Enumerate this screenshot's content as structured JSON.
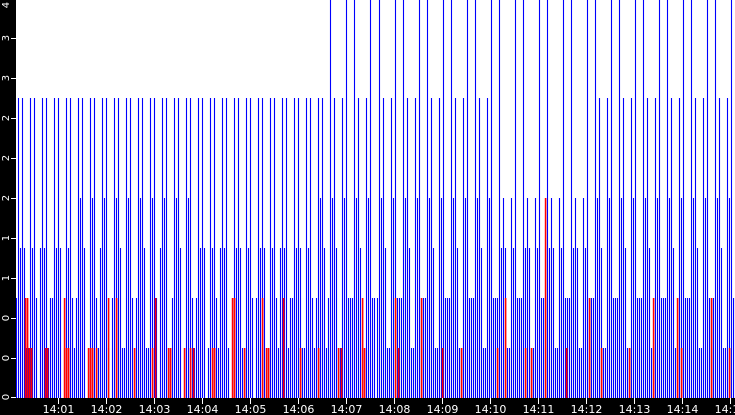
{
  "chart_data": {
    "type": "line",
    "title": "",
    "xlabel": "",
    "ylabel": "",
    "ylim": [
      0,
      4
    ],
    "xlim": [
      "14:00:07",
      "14:15:06"
    ],
    "grid": false,
    "legend": "none",
    "y_ticks": [
      {
        "value": 0,
        "label": "0"
      },
      {
        "value": 0.4,
        "label": "0"
      },
      {
        "value": 0.8,
        "label": "0"
      },
      {
        "value": 1.2,
        "label": "1"
      },
      {
        "value": 1.6,
        "label": "1"
      },
      {
        "value": 2.0,
        "label": "2"
      },
      {
        "value": 2.4,
        "label": "2"
      },
      {
        "value": 2.8,
        "label": "2"
      },
      {
        "value": 3.2,
        "label": "3"
      },
      {
        "value": 3.6,
        "label": "3"
      },
      {
        "value": 4.0,
        "label": "4"
      }
    ],
    "x_ticks": [
      {
        "time": "14:01:00",
        "label": "14:01"
      },
      {
        "time": "14:02:00",
        "label": "14:02"
      },
      {
        "time": "14:03:00",
        "label": "14:03"
      },
      {
        "time": "14:04:00",
        "label": "14:04"
      },
      {
        "time": "14:05:00",
        "label": "14:05"
      },
      {
        "time": "14:06:00",
        "label": "14:06"
      },
      {
        "time": "14:07:00",
        "label": "14:07"
      },
      {
        "time": "14:08:00",
        "label": "14:08"
      },
      {
        "time": "14:09:00",
        "label": "14:09"
      },
      {
        "time": "14:10:00",
        "label": "14:10"
      },
      {
        "time": "14:11:00",
        "label": "14:11"
      },
      {
        "time": "14:12:00",
        "label": "14:12"
      },
      {
        "time": "14:13:00",
        "label": "14:13"
      },
      {
        "time": "14:14:00",
        "label": "14:14"
      },
      {
        "time": "14:15:00",
        "label": "14:15"
      }
    ],
    "series": [
      {
        "color": "#0000ff",
        "start": "14:00:08",
        "interval_s": 2.5,
        "values": [
          1,
          3,
          1.5,
          3,
          1.5,
          0.5,
          0.5,
          3,
          1.5,
          3,
          1,
          0,
          1.5,
          3,
          1.5,
          3,
          0.5,
          1,
          1,
          3,
          1.5,
          3,
          1.5,
          0,
          0.5,
          3,
          1.5,
          3,
          1,
          0.5,
          1,
          3,
          2,
          3,
          1.5,
          0,
          0.5,
          3,
          2,
          3,
          1,
          0.5,
          1.5,
          3,
          2,
          3,
          0.5,
          0,
          1,
          3,
          2,
          3,
          1.5,
          0.5,
          0.5,
          3,
          2,
          3,
          1,
          0,
          1,
          3,
          2,
          3,
          1.5,
          0.5,
          0.5,
          3,
          2,
          3,
          1,
          0,
          1.5,
          3,
          2,
          3,
          0.5,
          0.5,
          1,
          3,
          2,
          3,
          1.5,
          0,
          0.5,
          3,
          2,
          3,
          1,
          0.5,
          1,
          3,
          1.5,
          3,
          1.5,
          0,
          0.5,
          3,
          1.5,
          3,
          1,
          0.5,
          1.5,
          3,
          1.5,
          3,
          0.5,
          0,
          1,
          3,
          1.5,
          3,
          1.5,
          0.5,
          0.5,
          3,
          1.5,
          3,
          1,
          0,
          1,
          3,
          1.5,
          3,
          1.5,
          0.5,
          0.5,
          3,
          1.5,
          3,
          1,
          0.5,
          1.5,
          3,
          1.5,
          3,
          0.5,
          1,
          1,
          3,
          1.5,
          3,
          1.5,
          0.5,
          0.5,
          3,
          1.5,
          3,
          1,
          0.5,
          1,
          3,
          2,
          3,
          1.5,
          0.5,
          1,
          4.5,
          2,
          3,
          1.5,
          0.5,
          0.5,
          3,
          2,
          4.5,
          1,
          1,
          1,
          4.5,
          2,
          3,
          1.5,
          0.5,
          0.5,
          3,
          2,
          4.5,
          1,
          1,
          1,
          4.5,
          2,
          3,
          1.5,
          0.5,
          0.5,
          3,
          2,
          4.5,
          1,
          1,
          1,
          4.5,
          2,
          3,
          1.5,
          0.5,
          0.5,
          3,
          2,
          4.5,
          1,
          1,
          1,
          4.5,
          2,
          3,
          1.5,
          0.5,
          0.5,
          3,
          2,
          4.5,
          1,
          1,
          1,
          4.5,
          2,
          3,
          1.5,
          0.5,
          0.5,
          3,
          2,
          4.5,
          1,
          1,
          1,
          4.5,
          2,
          3,
          1.5,
          0.5,
          0.5,
          3,
          2,
          4.5,
          1,
          1,
          1,
          4.5,
          1.5,
          2,
          1.5,
          0.5,
          0.5,
          2,
          1.5,
          4.5,
          1,
          1,
          1,
          4.5,
          1.5,
          2,
          1.5,
          0.5,
          0.5,
          2,
          1.5,
          4.5,
          1,
          1,
          1,
          4.5,
          1.5,
          2,
          1.5,
          0.5,
          0.5,
          2,
          1.5,
          4.5,
          1,
          1,
          1,
          4.5,
          1.5,
          2,
          1.5,
          0.5,
          0.5,
          2,
          1.5,
          4.5,
          1,
          1,
          1,
          4.5,
          2,
          3,
          1.5,
          0.5,
          0.5,
          3,
          2,
          4.5,
          1,
          1,
          1,
          4.5,
          2,
          3,
          1.5,
          0.5,
          0.5,
          3,
          2,
          4.5,
          1,
          1,
          1,
          4.5,
          2,
          3,
          1.5,
          0.5,
          0.5,
          3,
          2,
          4.5,
          1,
          1,
          1,
          4.5,
          2,
          3,
          1.5,
          0.5,
          0.5,
          3,
          2,
          4.5,
          1,
          1,
          1,
          4.5,
          2,
          3,
          1.5,
          0.5,
          0.5,
          3,
          2,
          4.5,
          1,
          1,
          1,
          4.5,
          2,
          3,
          1.5,
          0.5,
          0.5,
          3,
          2,
          4.5,
          1,
          1
        ]
      },
      {
        "color": "#ff0000",
        "points": [
          [
            "14:00:19",
            1
          ],
          [
            "14:00:21",
            1
          ],
          [
            "14:00:24",
            0.5
          ],
          [
            "14:00:26",
            0.5
          ],
          [
            "14:00:44",
            0.5
          ],
          [
            "14:00:46",
            0.5
          ],
          [
            "14:01:08",
            1
          ],
          [
            "14:01:10",
            0.5
          ],
          [
            "14:01:13",
            0.5
          ],
          [
            "14:01:38",
            0.5
          ],
          [
            "14:01:40",
            0.5
          ],
          [
            "14:01:43",
            0.5
          ],
          [
            "14:01:48",
            0.5
          ],
          [
            "14:02:03",
            1
          ],
          [
            "14:02:13",
            1
          ],
          [
            "14:02:35",
            0.5
          ],
          [
            "14:02:58",
            0.5
          ],
          [
            "14:03:01",
            1
          ],
          [
            "14:03:18",
            0.5
          ],
          [
            "14:03:20",
            0.5
          ],
          [
            "14:03:38",
            0.5
          ],
          [
            "14:03:45",
            0.5
          ],
          [
            "14:03:49",
            0.5
          ],
          [
            "14:04:13",
            0.5
          ],
          [
            "14:04:15",
            0.5
          ],
          [
            "14:04:38",
            1
          ],
          [
            "14:04:40",
            1
          ],
          [
            "14:04:53",
            0.5
          ],
          [
            "14:05:15",
            1
          ],
          [
            "14:05:20",
            0.5
          ],
          [
            "14:05:23",
            0.5
          ],
          [
            "14:05:41",
            1
          ],
          [
            "14:06:03",
            0.5
          ],
          [
            "14:06:25",
            0.5
          ],
          [
            "14:06:50",
            0.5
          ],
          [
            "14:06:54",
            0.5
          ],
          [
            "14:07:20",
            1
          ],
          [
            "14:07:23",
            0.5
          ],
          [
            "14:08:01",
            1
          ],
          [
            "14:08:05",
            0.5
          ],
          [
            "14:08:33",
            1
          ],
          [
            "14:09:00",
            0.5
          ],
          [
            "14:09:23",
            0.5
          ],
          [
            "14:10:09",
            0.5
          ],
          [
            "14:10:19",
            1
          ],
          [
            "14:10:43",
            0.5
          ],
          [
            "14:10:51",
            0.5
          ],
          [
            "14:11:08",
            2
          ],
          [
            "14:11:35",
            0.5
          ],
          [
            "14:12:03",
            1
          ],
          [
            "14:12:18",
            0.5
          ],
          [
            "14:12:54",
            0.5
          ],
          [
            "14:13:23",
            1
          ],
          [
            "14:13:53",
            1
          ],
          [
            "14:13:58",
            0.5
          ],
          [
            "14:14:36",
            1
          ],
          [
            "14:14:58",
            0.5
          ]
        ]
      }
    ]
  }
}
